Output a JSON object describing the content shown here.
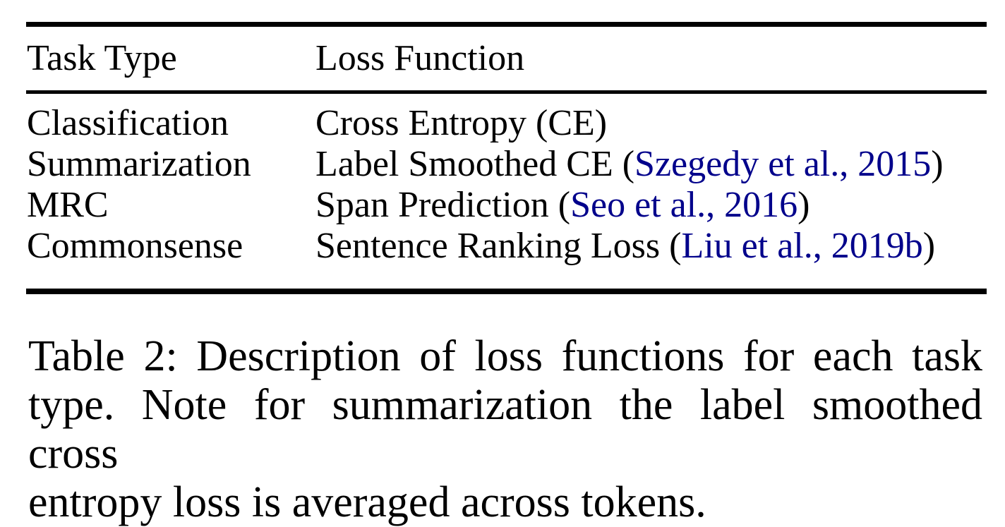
{
  "colors": {
    "text": "#000000",
    "rule": "#000000",
    "citation": "#00008B"
  },
  "table": {
    "columns": [
      "Task Type",
      "Loss Function"
    ],
    "rows": [
      {
        "task": "Classification",
        "loss_prefix": "Cross Entropy (CE)",
        "citation": "",
        "loss_suffix": ""
      },
      {
        "task": "Summarization",
        "loss_prefix": "Label Smoothed CE (",
        "citation": "Szegedy et al., 2015",
        "loss_suffix": ")"
      },
      {
        "task": "MRC",
        "loss_prefix": "Span Prediction (",
        "citation": "Seo et al., 2016",
        "loss_suffix": ")"
      },
      {
        "task": "Commonsense",
        "loss_prefix": "Sentence Ranking Loss (",
        "citation": "Liu et al., 2019b",
        "loss_suffix": ")"
      }
    ]
  },
  "caption": {
    "lines": [
      "Table 2: Description of loss functions for each task",
      "type. Note for summarization the label smoothed cross",
      "entropy loss is averaged across tokens."
    ]
  }
}
